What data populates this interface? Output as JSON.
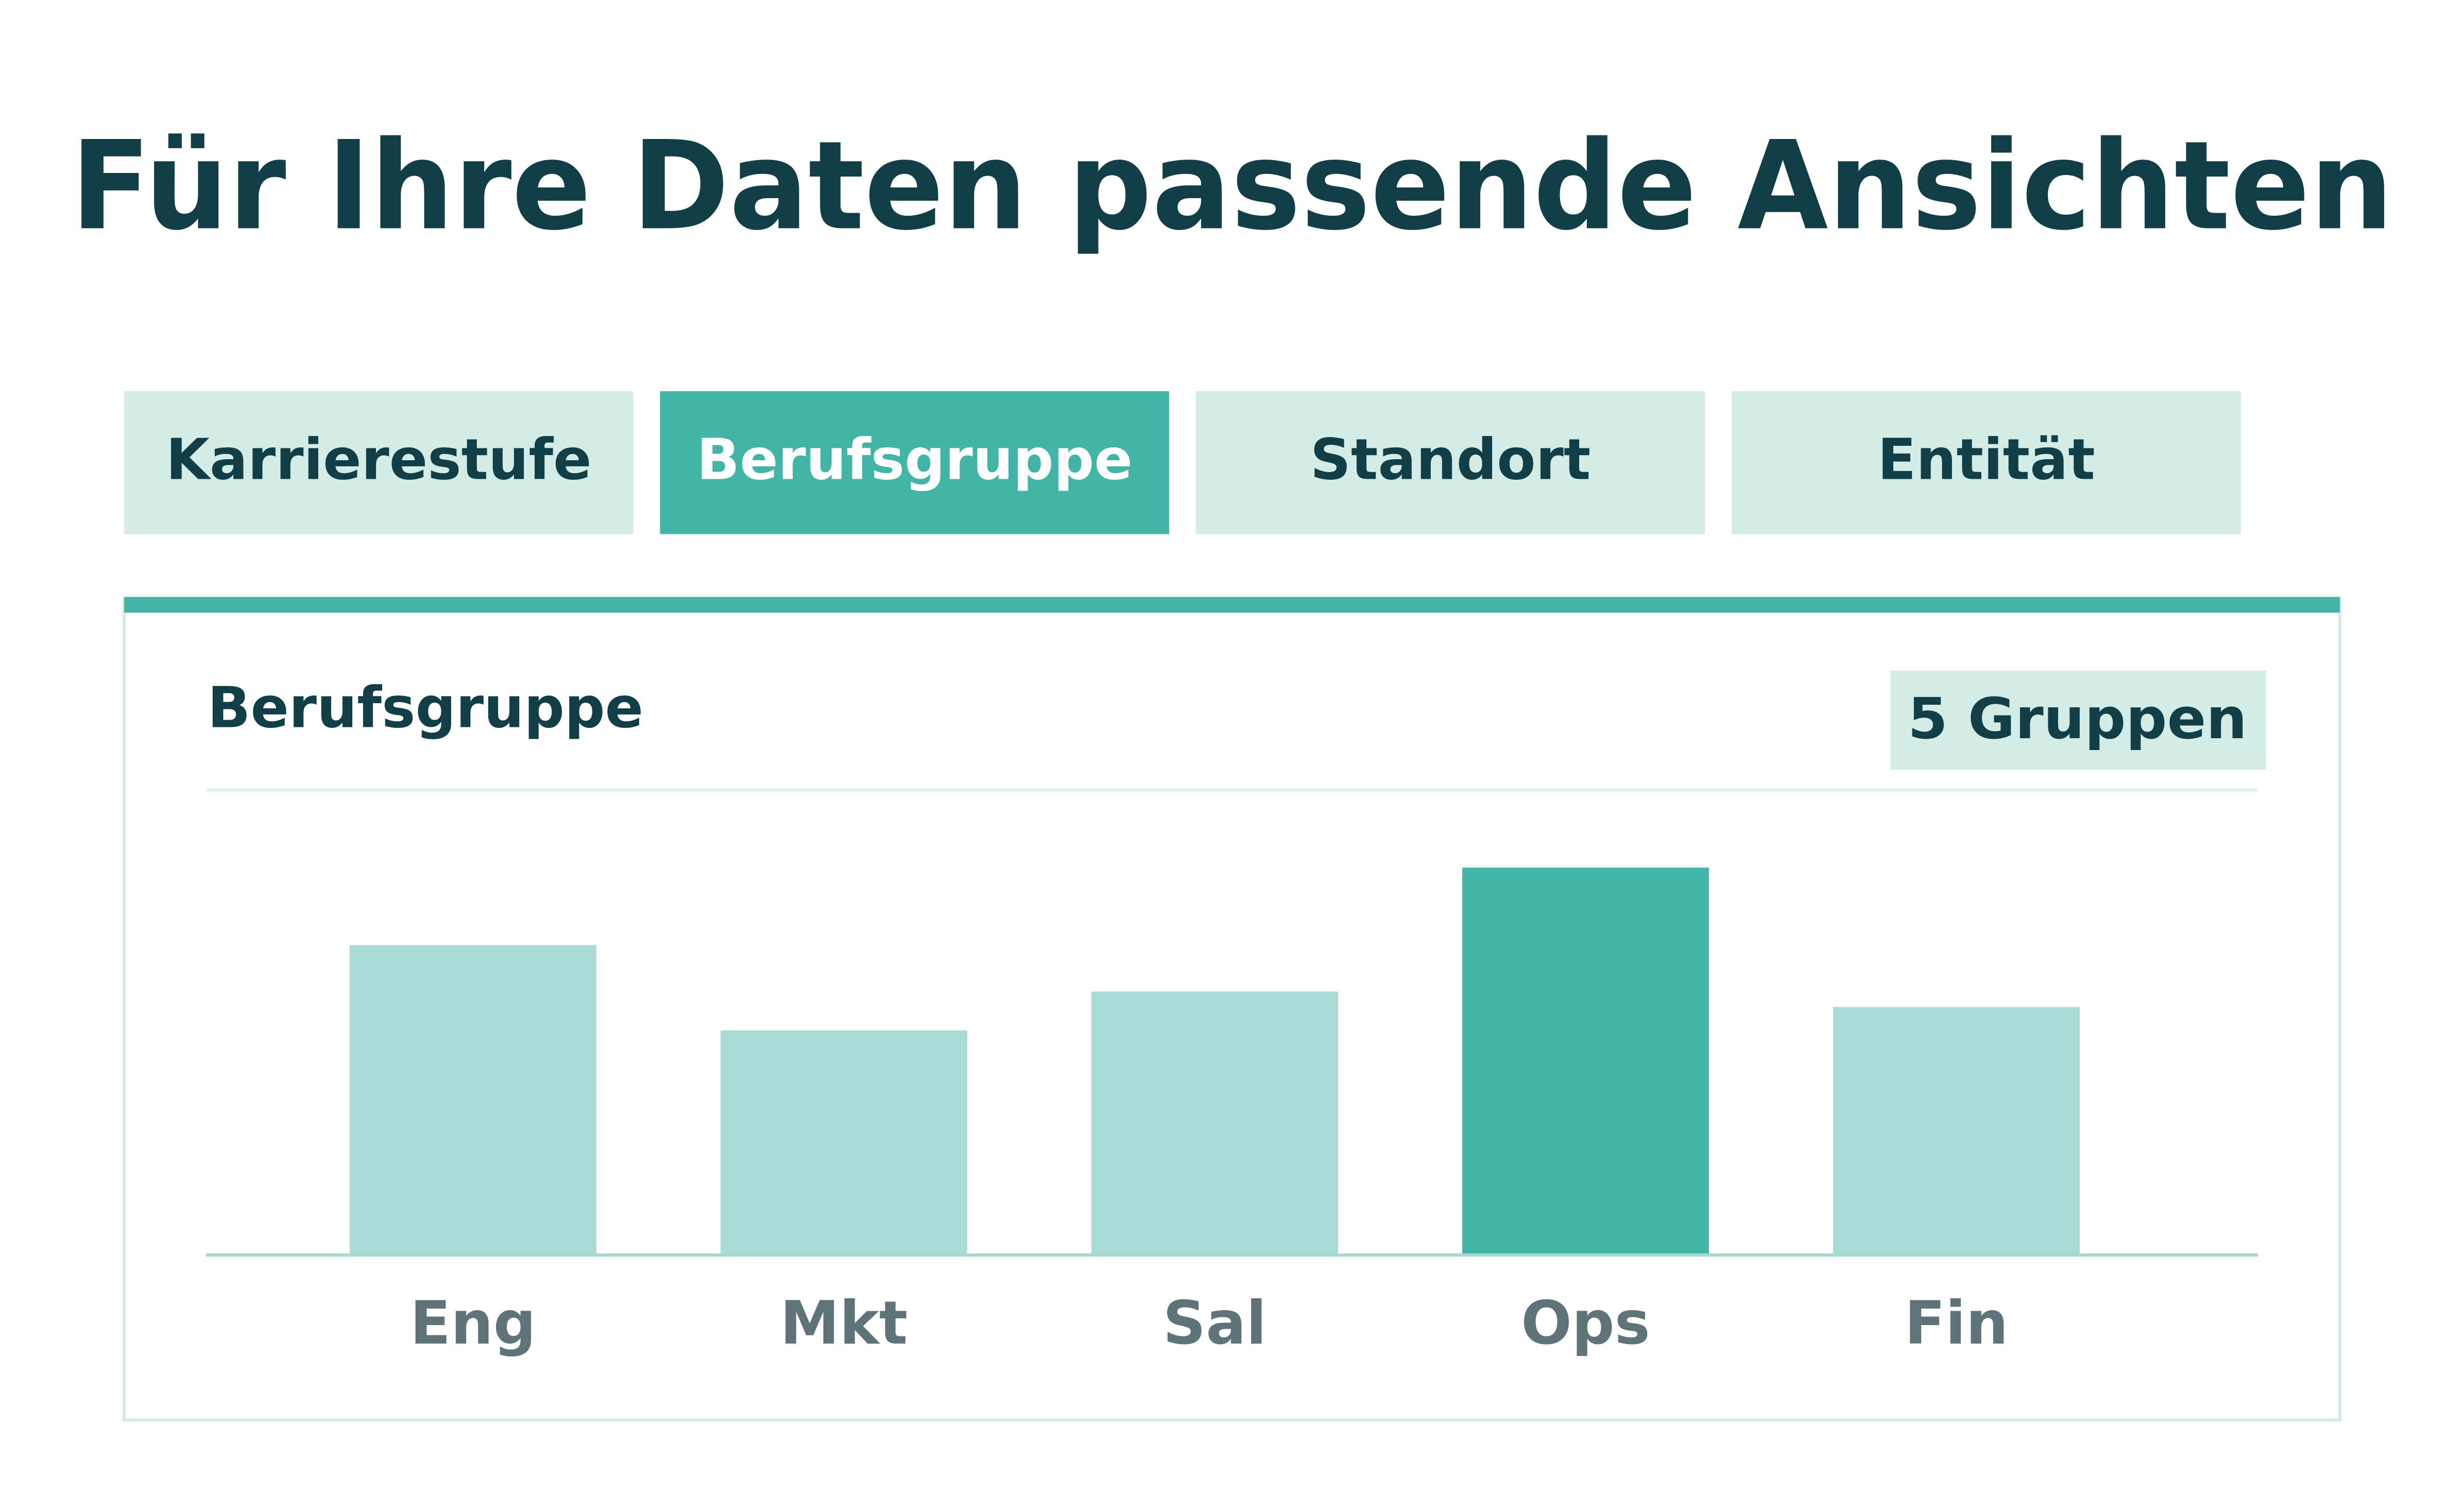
{
  "title": "Für Ihre Daten passende Ansichten",
  "tabs": [
    {
      "label": "Karrierestufe",
      "active": false
    },
    {
      "label": "Berufsgruppe",
      "active": true
    },
    {
      "label": "Standort",
      "active": false
    },
    {
      "label": "Entität",
      "active": false
    }
  ],
  "panel": {
    "title": "Berufsgruppe",
    "badge": "5 Gruppen"
  },
  "chart_data": {
    "type": "bar",
    "categories": [
      "Eng",
      "Mkt",
      "Sal",
      "Ops",
      "Fin"
    ],
    "values": [
      200,
      145,
      170,
      250,
      160
    ],
    "colors": [
      "#a8dbd3",
      "#a8dbd3",
      "#a8dbd3",
      "#43b5a8",
      "#a8dbd3"
    ],
    "ylim": [
      0,
      300
    ]
  }
}
